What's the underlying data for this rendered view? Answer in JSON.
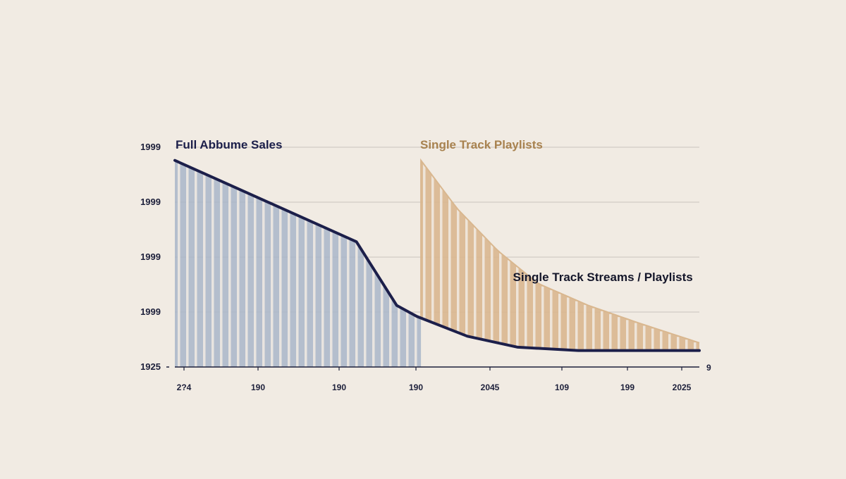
{
  "chart_data": {
    "type": "area",
    "title": "",
    "xlabel": "",
    "ylabel": "",
    "x_domain": [
      1999,
      2025
    ],
    "y_domain": [
      0,
      100
    ],
    "grid": true,
    "y_tick_labels": [
      "1925",
      "1999",
      "1999",
      "1999",
      "1999"
    ],
    "x_tick_labels": [
      "2?4",
      "190",
      "190",
      "190",
      "2045",
      "109",
      "199",
      "2025"
    ],
    "end_value_label": "9",
    "series": [
      {
        "name": "Full Abbume Sales",
        "kind": "hatched-area",
        "color": "#1c1f4a",
        "fill_color": "#a9b6c9",
        "points": [
          [
            1999,
            94
          ],
          [
            2008.0,
            57
          ],
          [
            2010.0,
            28
          ],
          [
            2011.0,
            23
          ],
          [
            2013.5,
            14
          ],
          [
            2016.0,
            9
          ],
          [
            2019.0,
            7.5
          ],
          [
            2025,
            7.5
          ]
        ]
      },
      {
        "name": "Single Track Playlists",
        "kind": "hatched-area",
        "color": "#a8824f",
        "fill_color": "#d9b78f",
        "points": [
          [
            2011.2,
            94
          ],
          [
            2013.0,
            72
          ],
          [
            2015.0,
            53
          ],
          [
            2017.0,
            38
          ],
          [
            2019.5,
            28
          ],
          [
            2022.0,
            20
          ],
          [
            2025,
            11
          ]
        ]
      }
    ],
    "annotations": [
      {
        "text": "Single Track Streams / Playlists",
        "x": 2024.5,
        "y": 41
      }
    ]
  },
  "colors": {
    "background": "#f1ebe3",
    "grid": "#c9c3bc",
    "axis": "#1c1f3a"
  }
}
